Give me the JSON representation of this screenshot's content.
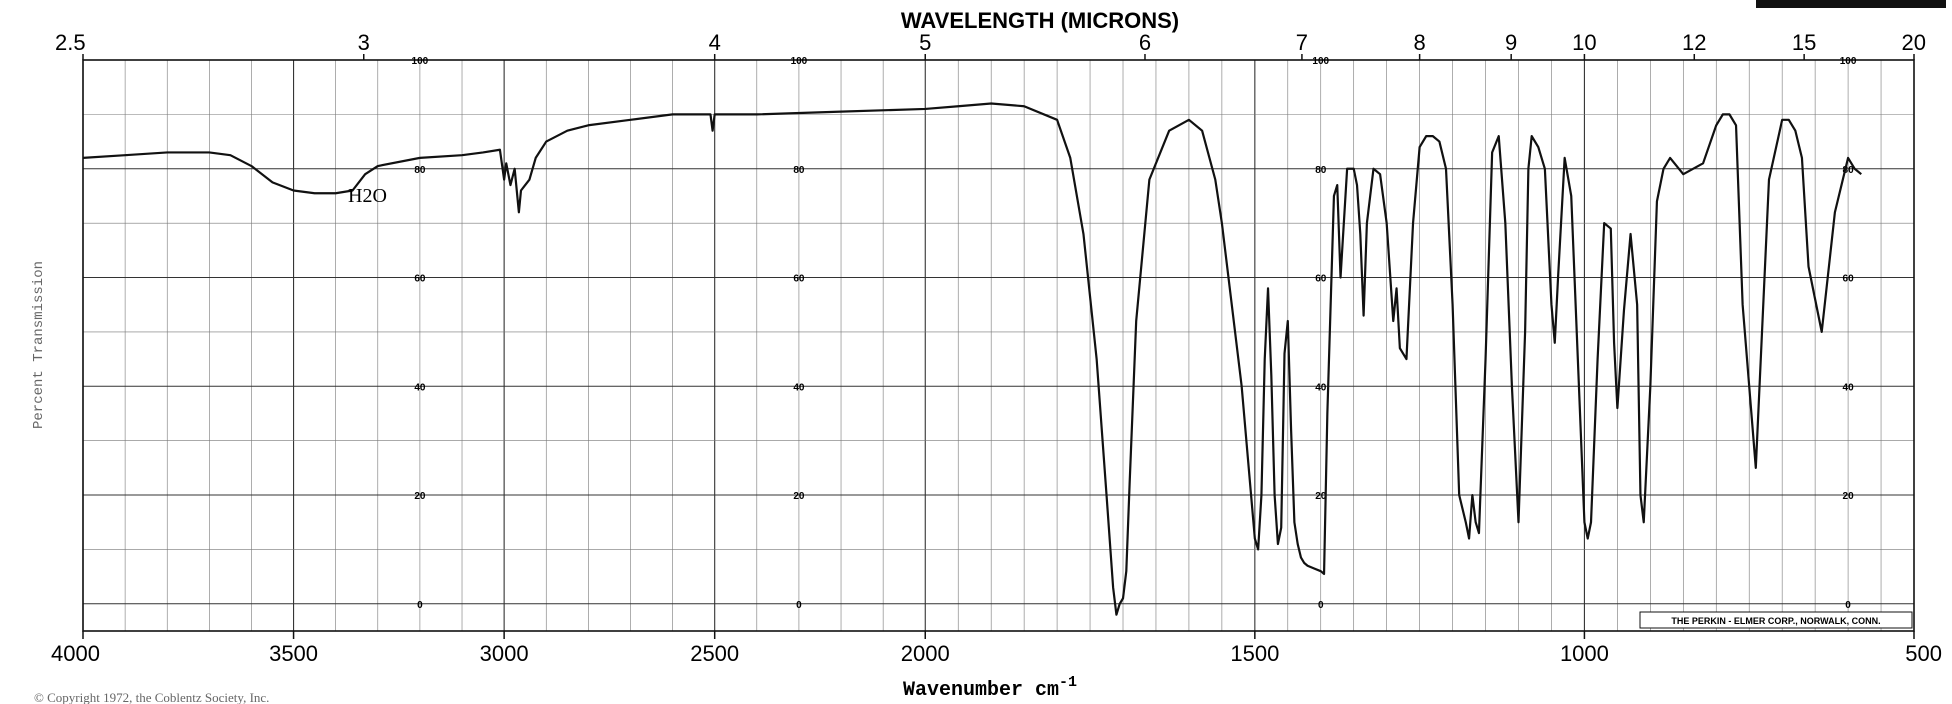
{
  "chart_data": {
    "type": "line",
    "title": "WAVELENGTH (MICRONS)",
    "xlabel": "Wavenumber cm",
    "xlabel_superscript": "-1",
    "ylabel": "Percent Transmission",
    "xlim": [
      4000,
      500
    ],
    "ylim": [
      -5,
      100
    ],
    "grid": true,
    "x_ticks": [
      "4000",
      "3500",
      "3000",
      "2500",
      "2000",
      "1500",
      "1000",
      "500"
    ],
    "top_ticks": [
      "2.5",
      "3",
      "4",
      "5",
      "6",
      "7",
      "8",
      "9",
      "10",
      "12",
      "15",
      "20"
    ],
    "inner_ticks": [
      "100",
      "80",
      "60",
      "40",
      "20",
      "0"
    ],
    "annotation": "H2O",
    "maker_label": "THE PERKIN - ELMER CORP., NORWALK, CONN.",
    "footer": "© Copyright 1972, the Coblentz Society, Inc.",
    "series": [
      {
        "x": [
          4000,
          3900,
          3800,
          3700,
          3650,
          3600,
          3550,
          3500,
          3450,
          3400,
          3360,
          3330,
          3300,
          3200,
          3100,
          3050,
          3010,
          3000,
          2995,
          2985,
          2975,
          2965,
          2960,
          2950,
          2940,
          2925,
          2900,
          2850,
          2800,
          2700,
          2600,
          2510,
          2505,
          2500,
          2400,
          2200,
          2000,
          1950,
          1900,
          1850,
          1800,
          1780,
          1760,
          1740,
          1725,
          1715,
          1710,
          1705,
          1700,
          1695,
          1690,
          1680,
          1660,
          1630,
          1600,
          1580,
          1560,
          1550,
          1520,
          1500,
          1495,
          1490,
          1485,
          1480,
          1475,
          1470,
          1465,
          1460,
          1455,
          1450,
          1445,
          1440,
          1435,
          1430,
          1425,
          1420,
          1410,
          1400,
          1395,
          1390,
          1380,
          1375,
          1370,
          1360,
          1350,
          1345,
          1340,
          1335,
          1330,
          1320,
          1310,
          1300,
          1290,
          1285,
          1280,
          1270,
          1260,
          1250,
          1240,
          1230,
          1220,
          1210,
          1200,
          1190,
          1180,
          1175,
          1170,
          1165,
          1160,
          1150,
          1140,
          1130,
          1120,
          1110,
          1100,
          1090,
          1085,
          1080,
          1070,
          1060,
          1050,
          1045,
          1040,
          1030,
          1020,
          1010,
          1000,
          995,
          990,
          980,
          970,
          960,
          955,
          950,
          940,
          930,
          920,
          915,
          910,
          900,
          890,
          880,
          870,
          850,
          820,
          800,
          790,
          780,
          770,
          760,
          740,
          720,
          700,
          690,
          680,
          670,
          660,
          640,
          620,
          600,
          590,
          580
        ],
        "y": [
          82,
          82.5,
          83,
          83,
          82.5,
          80.5,
          77.5,
          76,
          75.5,
          75.5,
          76,
          79,
          80.5,
          82,
          82.5,
          83,
          83.5,
          78,
          81,
          77,
          80,
          72,
          76,
          77,
          78,
          82,
          85,
          87,
          88,
          89,
          90,
          90,
          87,
          90,
          90,
          90.5,
          91,
          91.5,
          92,
          91.5,
          89,
          82,
          68,
          45,
          20,
          3,
          -2,
          0,
          1,
          6,
          22,
          52,
          78,
          87,
          89,
          87,
          78,
          70,
          40,
          12,
          10,
          20,
          45,
          58,
          42,
          20,
          11,
          14,
          46,
          52,
          32,
          15,
          11,
          8.5,
          7.5,
          7,
          6.5,
          6,
          5.5,
          35,
          75,
          77,
          60,
          80,
          80,
          77,
          68,
          53,
          70,
          80,
          79,
          70,
          52,
          58,
          47,
          45,
          70,
          84,
          86,
          86,
          85,
          80,
          55,
          20,
          15,
          12,
          20,
          15,
          13,
          45,
          83,
          86,
          70,
          40,
          15,
          50,
          80,
          86,
          84,
          80,
          55,
          48,
          60,
          82,
          75,
          45,
          15,
          12,
          15,
          45,
          70,
          69,
          48,
          36,
          54,
          68,
          55,
          20,
          15,
          40,
          74,
          80,
          82,
          79,
          81,
          88,
          90,
          90,
          88,
          55,
          25,
          78,
          89,
          89,
          87,
          82,
          62,
          50,
          72,
          82,
          80,
          79
        ]
      }
    ]
  }
}
